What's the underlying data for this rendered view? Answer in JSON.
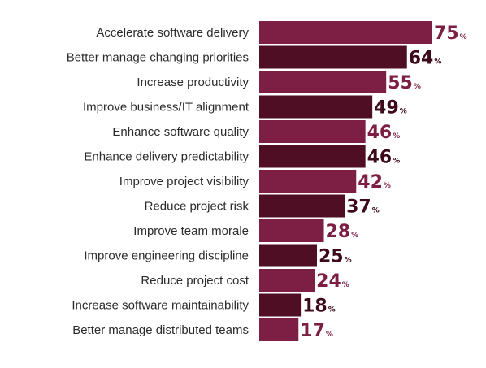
{
  "chart_data": {
    "type": "bar",
    "orientation": "horizontal",
    "categories": [
      "Accelerate software delivery",
      "Better manage changing priorities",
      "Increase productivity",
      "Improve business/IT alignment",
      "Enhance software quality",
      "Enhance delivery predictability",
      "Improve project visibility",
      "Reduce project risk",
      "Improve team morale",
      "Improve engineering discipline",
      "Reduce project cost",
      "Increase software maintainability",
      "Better manage distributed teams"
    ],
    "values": [
      75,
      64,
      55,
      49,
      46,
      46,
      42,
      37,
      28,
      25,
      24,
      18,
      17
    ],
    "value_suffix": "%",
    "title": "",
    "xlabel": "",
    "ylabel": "",
    "xlim": [
      0,
      75
    ],
    "grid": false,
    "legend": "none",
    "colors": {
      "bar_light": "#7d1f45",
      "bar_dark": "#4f0e24",
      "value_light": "#7d1f45",
      "value_dark": "#3c0a1b",
      "label_text": "#2b2b2b"
    }
  }
}
